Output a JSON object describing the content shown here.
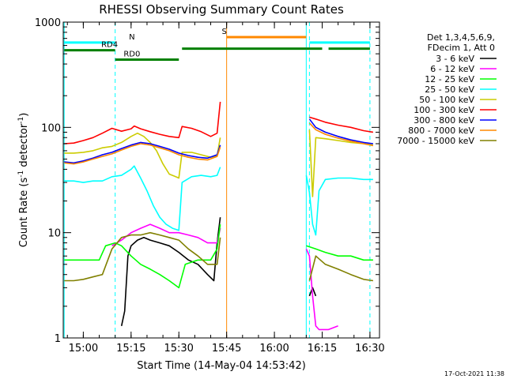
{
  "chart_data": {
    "type": "line",
    "title": "RHESSI Observing Summary Count Rates",
    "xlabel": "Start Time (14-May-04 14:53:42)",
    "ylabel": "Count Rate (s⁻¹ detector⁻¹)",
    "ylabel_main": "Count Rate (s",
    "ylabel_sup1": "-1",
    "ylabel_mid": " detector",
    "ylabel_sup2": "-1",
    "ylabel_end": ")",
    "y_scale": "log",
    "ylim": [
      1,
      1000
    ],
    "xlim": [
      "14:53:42",
      "16:33:00"
    ],
    "x_ticks": [
      "15:00",
      "15:15",
      "15:30",
      "15:45",
      "16:00",
      "16:15",
      "16:30"
    ],
    "y_ticks": [
      "1",
      "10",
      "100",
      "1000"
    ],
    "grid": false,
    "legend_position": "right",
    "legend_header": [
      "Det 1,3,4,5,6,9,",
      "FDecim 1, Att 0"
    ],
    "timestamp": "17-Oct-2021 11:38",
    "series": [
      {
        "name": "3 - 6 keV",
        "color": "#000000",
        "segments": [
          [
            [
              "15:12",
              1.3
            ],
            [
              "15:13",
              1.8
            ],
            [
              "15:14",
              6
            ],
            [
              "15:15",
              7.5
            ],
            [
              "15:17",
              8.5
            ],
            [
              "15:19",
              9
            ],
            [
              "15:21",
              8.5
            ],
            [
              "15:24",
              8
            ],
            [
              "15:27",
              7.5
            ],
            [
              "15:30",
              6.5
            ],
            [
              "15:33",
              5.5
            ],
            [
              "15:36",
              5
            ],
            [
              "15:39",
              4
            ],
            [
              "15:41",
              3.5
            ],
            [
              "15:42",
              8
            ],
            [
              "15:43",
              14
            ]
          ],
          [
            [
              "16:11",
              2.5
            ],
            [
              "16:12",
              3
            ],
            [
              "16:13",
              2.5
            ]
          ]
        ]
      },
      {
        "name": "6 - 12 keV",
        "color": "#ff00ff",
        "segments": [
          [
            [
              "15:09",
              7.5
            ],
            [
              "15:12",
              8.5
            ],
            [
              "15:15",
              10
            ],
            [
              "15:18",
              11
            ],
            [
              "15:21",
              12
            ],
            [
              "15:24",
              11
            ],
            [
              "15:27",
              10
            ],
            [
              "15:30",
              10
            ],
            [
              "15:33",
              9.5
            ],
            [
              "15:36",
              9
            ],
            [
              "15:39",
              8
            ],
            [
              "15:42",
              8
            ],
            [
              "15:43",
              11
            ]
          ],
          [
            [
              "16:10",
              7
            ],
            [
              "16:11",
              6
            ],
            [
              "16:12",
              2.5
            ],
            [
              "16:13",
              1.3
            ],
            [
              "16:14",
              1.2
            ],
            [
              "16:17",
              1.2
            ],
            [
              "16:20",
              1.3
            ]
          ]
        ]
      },
      {
        "name": "12 - 25 keV",
        "color": "#00ff00",
        "segments": [
          [
            [
              "14:54",
              5.5
            ],
            [
              "14:58",
              5.5
            ],
            [
              "15:02",
              5.5
            ],
            [
              "15:05",
              5.5
            ],
            [
              "15:07",
              7.5
            ],
            [
              "15:10",
              8
            ],
            [
              "15:12",
              7.5
            ],
            [
              "15:15",
              6
            ],
            [
              "15:18",
              5
            ],
            [
              "15:21",
              4.5
            ],
            [
              "15:24",
              4
            ],
            [
              "15:27",
              3.5
            ],
            [
              "15:30",
              3
            ],
            [
              "15:32",
              5
            ],
            [
              "15:36",
              5.5
            ],
            [
              "15:40",
              5.5
            ],
            [
              "15:42",
              7
            ],
            [
              "15:43",
              12
            ]
          ],
          [
            [
              "16:10",
              7.5
            ],
            [
              "16:13",
              7
            ],
            [
              "16:16",
              6.5
            ],
            [
              "16:20",
              6
            ],
            [
              "16:24",
              6
            ],
            [
              "16:28",
              5.5
            ],
            [
              "16:31",
              5.5
            ]
          ]
        ]
      },
      {
        "name": "25 - 50 keV",
        "color": "#00ffff",
        "segments": [
          [
            [
              "14:54",
              31
            ],
            [
              "14:57",
              31
            ],
            [
              "15:00",
              30
            ],
            [
              "15:03",
              31
            ],
            [
              "15:06",
              31
            ],
            [
              "15:09",
              34
            ],
            [
              "15:12",
              35
            ],
            [
              "15:15",
              40
            ],
            [
              "15:16",
              43
            ],
            [
              "15:18",
              33
            ],
            [
              "15:20",
              25
            ],
            [
              "15:22",
              18
            ],
            [
              "15:24",
              14
            ],
            [
              "15:26",
              12
            ],
            [
              "15:28",
              11
            ],
            [
              "15:30",
              10.5
            ],
            [
              "15:31",
              30
            ],
            [
              "15:34",
              34
            ],
            [
              "15:37",
              35
            ],
            [
              "15:40",
              34
            ],
            [
              "15:42",
              35
            ],
            [
              "15:43",
              42
            ]
          ],
          [
            [
              "16:10",
              35
            ],
            [
              "16:11",
              24
            ],
            [
              "16:12",
              12
            ],
            [
              "16:13",
              9.5
            ],
            [
              "16:14",
              25
            ],
            [
              "16:16",
              32
            ],
            [
              "16:20",
              33
            ],
            [
              "16:24",
              33
            ],
            [
              "16:28",
              32
            ],
            [
              "16:31",
              32
            ]
          ]
        ]
      },
      {
        "name": "50 - 100 keV",
        "color": "#cccc00",
        "segments": [
          [
            [
              "14:54",
              57
            ],
            [
              "14:57",
              57
            ],
            [
              "15:00",
              58
            ],
            [
              "15:03",
              60
            ],
            [
              "15:06",
              64
            ],
            [
              "15:09",
              66
            ],
            [
              "15:12",
              72
            ],
            [
              "15:15",
              82
            ],
            [
              "15:17",
              88
            ],
            [
              "15:19",
              82
            ],
            [
              "15:21",
              72
            ],
            [
              "15:23",
              60
            ],
            [
              "15:25",
              45
            ],
            [
              "15:27",
              36
            ],
            [
              "15:29",
              34
            ],
            [
              "15:30",
              33
            ],
            [
              "15:31",
              58
            ],
            [
              "15:34",
              58
            ],
            [
              "15:37",
              55
            ],
            [
              "15:40",
              52
            ],
            [
              "15:42",
              54
            ],
            [
              "15:43",
              80
            ]
          ],
          [
            [
              "16:11",
              95
            ],
            [
              "16:12",
              22
            ],
            [
              "16:13",
              80
            ],
            [
              "16:16",
              78
            ],
            [
              "16:20",
              75
            ],
            [
              "16:24",
              72
            ],
            [
              "16:28",
              70
            ],
            [
              "16:31",
              68
            ]
          ]
        ]
      },
      {
        "name": "100 - 300 keV",
        "color": "#ff0000",
        "segments": [
          [
            [
              "14:54",
              70
            ],
            [
              "14:57",
              71
            ],
            [
              "15:00",
              75
            ],
            [
              "15:03",
              80
            ],
            [
              "15:06",
              88
            ],
            [
              "15:09",
              98
            ],
            [
              "15:12",
              92
            ],
            [
              "15:15",
              97
            ],
            [
              "15:16",
              103
            ],
            [
              "15:18",
              97
            ],
            [
              "15:21",
              91
            ],
            [
              "15:24",
              86
            ],
            [
              "15:27",
              82
            ],
            [
              "15:30",
              80
            ],
            [
              "15:31",
              102
            ],
            [
              "15:34",
              98
            ],
            [
              "15:37",
              91
            ],
            [
              "15:40",
              82
            ],
            [
              "15:42",
              88
            ],
            [
              "15:43",
              175
            ]
          ],
          [
            [
              "16:11",
              125
            ],
            [
              "16:13",
              120
            ],
            [
              "16:16",
              112
            ],
            [
              "16:20",
              105
            ],
            [
              "16:24",
              100
            ],
            [
              "16:28",
              93
            ],
            [
              "16:31",
              90
            ]
          ]
        ]
      },
      {
        "name": "300 - 800 keV",
        "color": "#0000ff",
        "segments": [
          [
            [
              "14:54",
              47
            ],
            [
              "14:57",
              46
            ],
            [
              "15:00",
              48
            ],
            [
              "15:03",
              51
            ],
            [
              "15:06",
              55
            ],
            [
              "15:09",
              58
            ],
            [
              "15:12",
              63
            ],
            [
              "15:15",
              68
            ],
            [
              "15:18",
              72
            ],
            [
              "15:21",
              70
            ],
            [
              "15:24",
              66
            ],
            [
              "15:27",
              62
            ],
            [
              "15:30",
              57
            ],
            [
              "15:33",
              54
            ],
            [
              "15:36",
              52
            ],
            [
              "15:39",
              51
            ],
            [
              "15:42",
              55
            ],
            [
              "15:43",
              68
            ]
          ],
          [
            [
              "16:11",
              120
            ],
            [
              "16:13",
              100
            ],
            [
              "16:16",
              90
            ],
            [
              "16:20",
              82
            ],
            [
              "16:24",
              76
            ],
            [
              "16:28",
              72
            ],
            [
              "16:31",
              70
            ]
          ]
        ]
      },
      {
        "name": "800 - 7000 keV",
        "color": "#ff8800",
        "segments": [
          [
            [
              "14:54",
              46
            ],
            [
              "14:57",
              45
            ],
            [
              "15:00",
              47
            ],
            [
              "15:03",
              50
            ],
            [
              "15:06",
              53
            ],
            [
              "15:09",
              56
            ],
            [
              "15:12",
              61
            ],
            [
              "15:15",
              66
            ],
            [
              "15:18",
              70
            ],
            [
              "15:21",
              68
            ],
            [
              "15:24",
              64
            ],
            [
              "15:27",
              60
            ],
            [
              "15:30",
              55
            ],
            [
              "15:33",
              52
            ],
            [
              "15:36",
              50
            ],
            [
              "15:39",
              49
            ],
            [
              "15:42",
              53
            ],
            [
              "15:43",
              65
            ]
          ],
          [
            [
              "16:11",
              110
            ],
            [
              "16:13",
              95
            ],
            [
              "16:16",
              86
            ],
            [
              "16:20",
              79
            ],
            [
              "16:24",
              74
            ],
            [
              "16:28",
              70
            ],
            [
              "16:31",
              67
            ]
          ]
        ]
      },
      {
        "name": "7000 - 15000 keV",
        "color": "#808000",
        "segments": [
          [
            [
              "14:54",
              3.5
            ],
            [
              "14:57",
              3.5
            ],
            [
              "15:00",
              3.6
            ],
            [
              "15:03",
              3.8
            ],
            [
              "15:06",
              4
            ],
            [
              "15:09",
              7
            ],
            [
              "15:12",
              9
            ],
            [
              "15:15",
              9.5
            ],
            [
              "15:18",
              9.5
            ],
            [
              "15:21",
              10
            ],
            [
              "15:24",
              9.5
            ],
            [
              "15:27",
              9
            ],
            [
              "15:30",
              8.5
            ],
            [
              "15:33",
              7
            ],
            [
              "15:36",
              6
            ],
            [
              "15:39",
              5
            ],
            [
              "15:42",
              5
            ],
            [
              "15:43",
              9
            ]
          ],
          [
            [
              "16:11",
              3.5
            ],
            [
              "16:13",
              6
            ],
            [
              "16:16",
              5
            ],
            [
              "16:20",
              4.5
            ],
            [
              "16:24",
              4
            ],
            [
              "16:28",
              3.6
            ],
            [
              "16:31",
              3.5
            ]
          ]
        ]
      }
    ],
    "state_bars": [
      {
        "label": "N",
        "color": "#00ffff",
        "value": 640,
        "label_at": "15:16",
        "intervals": [
          [
            "14:54",
            "15:10"
          ],
          [
            "16:11",
            "16:30"
          ]
        ]
      },
      {
        "label": "S",
        "color": "#ff8800",
        "value": 720,
        "label_at": "15:45",
        "intervals": [
          [
            "15:45",
            "16:10"
          ]
        ]
      },
      {
        "label": "RD4",
        "color": "#008000",
        "value": 540,
        "label_at": "15:09",
        "intervals": [
          [
            "14:54",
            "15:10"
          ]
        ]
      },
      {
        "label": "RD0",
        "color": "#008000",
        "value": 440,
        "label_at": "15:16",
        "intervals": [
          [
            "15:10",
            "15:30"
          ]
        ]
      },
      {
        "label": "",
        "color": "#008000",
        "value": 560,
        "intervals": [
          [
            "15:31",
            "16:10"
          ],
          [
            "16:10",
            "16:15"
          ],
          [
            "16:17",
            "16:30"
          ]
        ]
      }
    ],
    "vlines": [
      {
        "time": "14:54",
        "color": "#00ffff",
        "style": "solid"
      },
      {
        "time": "15:10",
        "color": "#00ffff",
        "style": "dashed"
      },
      {
        "time": "15:45",
        "color": "#ff8800",
        "style": "solid"
      },
      {
        "time": "16:10",
        "color": "#00ffff",
        "style": "solid"
      },
      {
        "time": "16:11",
        "color": "#00ffff",
        "style": "dashed"
      },
      {
        "time": "16:30",
        "color": "#00ffff",
        "style": "dashed"
      }
    ]
  }
}
